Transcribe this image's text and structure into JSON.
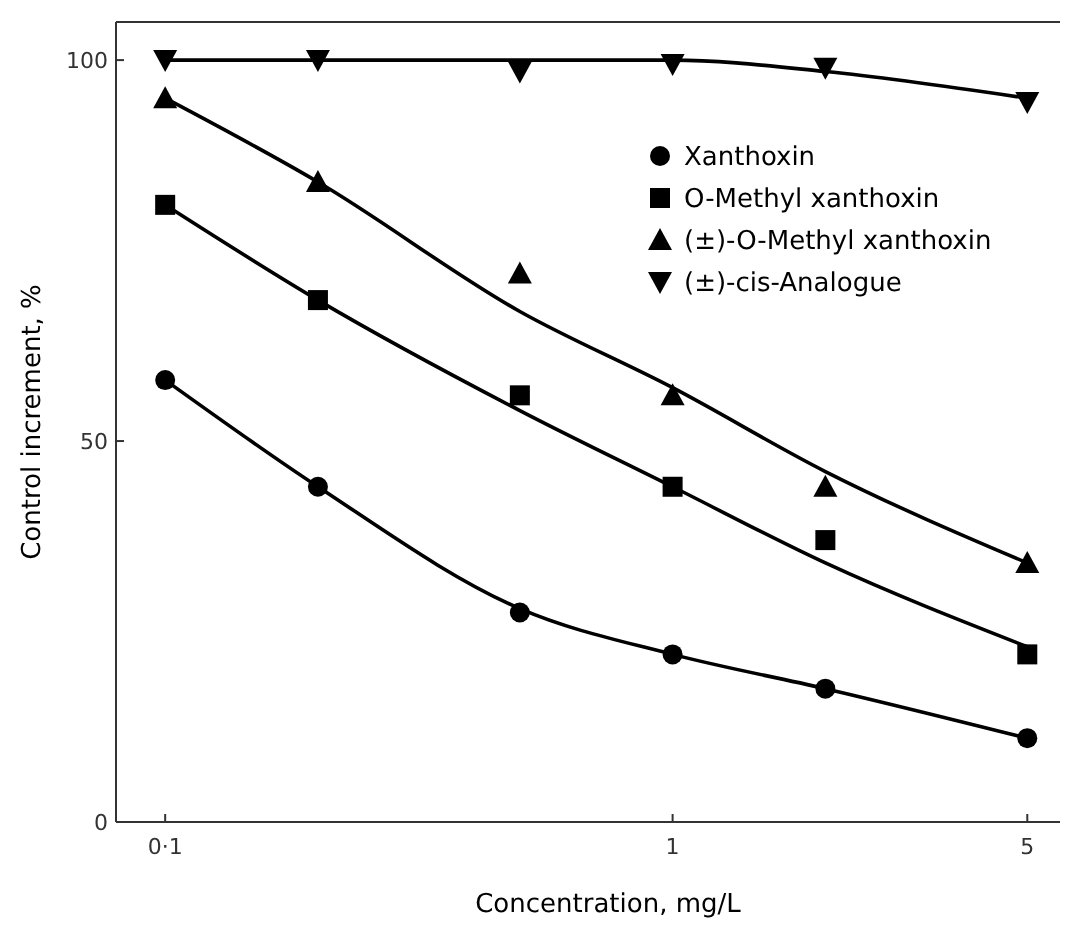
{
  "chart_data": {
    "type": "scatter",
    "xlabel": "Concentration,   mg/L",
    "ylabel": "Control increment,   %",
    "log": "x",
    "x": [
      0.1,
      0.2,
      0.5,
      1,
      2,
      5
    ],
    "xlim": [
      0.08,
      5.8
    ],
    "xticks": [
      {
        "value": 0.1,
        "label": "0·1"
      },
      1,
      5
    ],
    "ylim": [
      0,
      105
    ],
    "yticks": [
      0,
      50,
      100
    ],
    "grid": false,
    "legend": "top right",
    "series": [
      {
        "name": "Xanthoxin",
        "color": "#000000",
        "marker": "circle",
        "values": [
          58,
          44,
          27.5,
          22,
          17.5,
          11
        ]
      },
      {
        "name": "O-Methyl xanthoxin",
        "color": "#000000",
        "marker": "square",
        "values": [
          81,
          68.5,
          56,
          44,
          37,
          22
        ]
      },
      {
        "name": "(±)-O-Methyl xanthoxin",
        "color": "#000000",
        "marker": "triangle",
        "values": [
          95,
          84,
          72,
          56,
          44,
          34
        ]
      },
      {
        "name": "(±)-cis-Analogue",
        "color": "#000000",
        "marker": "triangle-down",
        "values": [
          100,
          100,
          98.5,
          99.5,
          99,
          94.5
        ]
      },
      {
        "type": "line",
        "color": "#000000",
        "marker": "none",
        "values": [
          58,
          44,
          28,
          22,
          17.5,
          11
        ]
      },
      {
        "type": "line",
        "color": "#000000",
        "marker": "none",
        "values": [
          81,
          68.5,
          54,
          44,
          34,
          23
        ]
      },
      {
        "type": "line",
        "color": "#000000",
        "marker": "none",
        "values": [
          95,
          84,
          67,
          57,
          46,
          34
        ]
      },
      {
        "type": "line",
        "color": "#000000",
        "marker": "none",
        "values": [
          100,
          100,
          100,
          100,
          98.5,
          95
        ]
      }
    ]
  }
}
